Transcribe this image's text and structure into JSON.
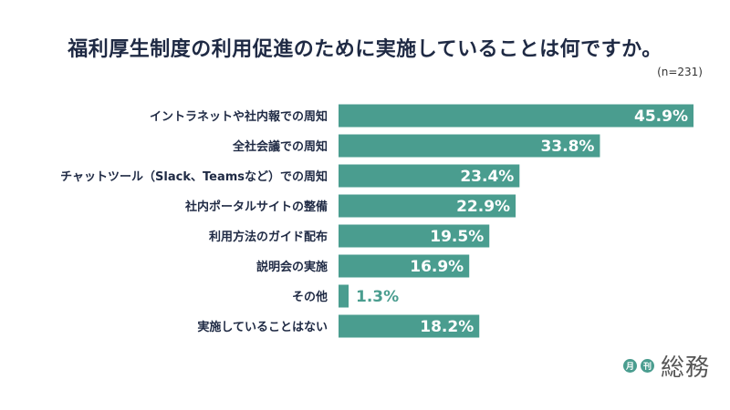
{
  "chart_data": {
    "type": "bar",
    "orientation": "horizontal",
    "title": "福利厚生制度の利用促進のために実施していることは何ですか。",
    "note": "(n=231)",
    "unit": "%",
    "categories": [
      "イントラネットや社内報での周知",
      "全社会議での周知",
      "チャットツール（Slack、Teamsなど）での周知",
      "社内ポータルサイトの整備",
      "利用方法のガイド配布",
      "説明会の実施",
      "その他",
      "実施していることはない"
    ],
    "values": [
      45.9,
      33.8,
      23.4,
      22.9,
      19.5,
      16.9,
      1.3,
      18.2
    ],
    "value_labels": [
      "45.9%",
      "33.8%",
      "23.4%",
      "22.9%",
      "19.5%",
      "16.9%",
      "1.3%",
      "18.2%"
    ],
    "xlim": [
      0,
      50
    ],
    "bar_color": "#4a9d8f",
    "inside_label_color": "#ffffff",
    "outside_label_color": "#4a9d8f"
  },
  "logo": {
    "badge1": "月",
    "badge2": "刊",
    "word": "総務"
  }
}
